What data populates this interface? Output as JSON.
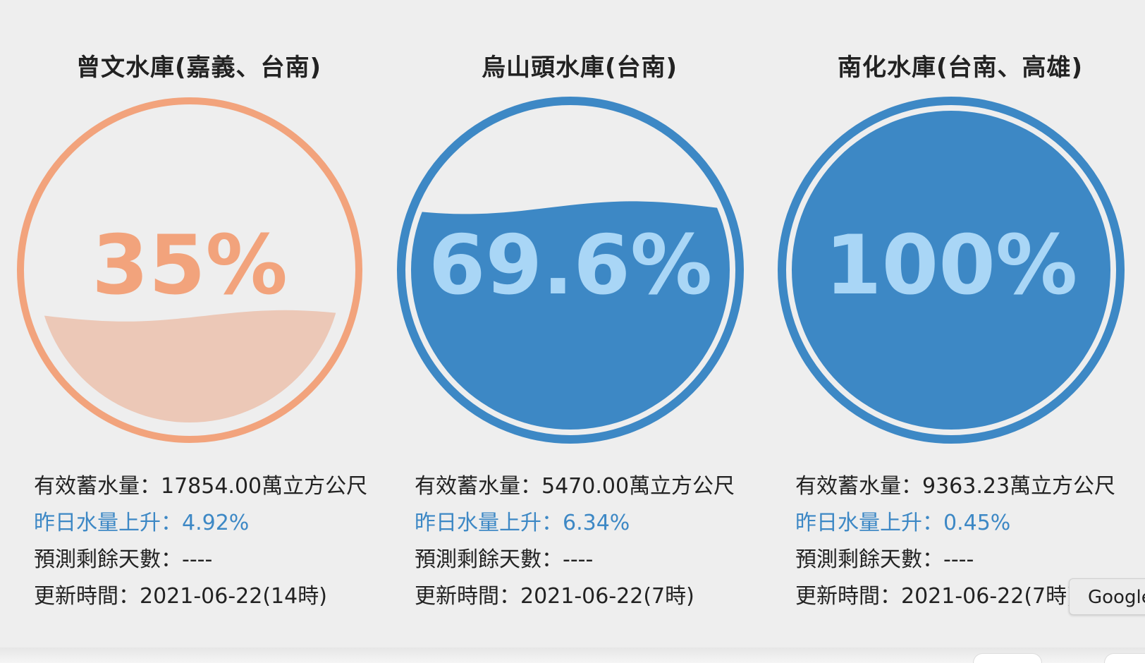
{
  "reservoirs": [
    {
      "name": "曾文水庫(嘉義、台南)",
      "percent_label": "35%",
      "fill_fraction": 0.35,
      "ring_color": "#f2a37c",
      "fill_color": "#ecc8b7",
      "text_color": "#f2a37c",
      "effective_storage": "有效蓄水量：17854.00萬立方公尺",
      "yesterday_change": "昨日水量上升：4.92%",
      "forecast_days": "預測剩餘天數：----",
      "updated": "更新時間：2021-06-22(14時)"
    },
    {
      "name": "烏山頭水庫(台南)",
      "percent_label": "69.6%",
      "fill_fraction": 0.696,
      "ring_color": "#3d88c5",
      "fill_color": "#3d88c5",
      "text_color": "#a9d6f6",
      "effective_storage": "有效蓄水量：5470.00萬立方公尺",
      "yesterday_change": "昨日水量上升：6.34%",
      "forecast_days": "預測剩餘天數：----",
      "updated": "更新時間：2021-06-22(7時)"
    },
    {
      "name": "南化水庫(台南、高雄)",
      "percent_label": "100%",
      "fill_fraction": 1.0,
      "ring_color": "#3d88c5",
      "fill_color": "#3d88c5",
      "text_color": "#a9d6f6",
      "effective_storage": "有效蓄水量：9363.23萬立方公尺",
      "yesterday_change": "昨日水量上升：0.45%",
      "forecast_days": "預測剩餘天數：----",
      "updated": "更新時間：2021-06-22(7時)"
    }
  ],
  "translate_chip": {
    "label": "Google"
  },
  "colors": {
    "background": "#eeeeee",
    "trend_text": "#3d88c5"
  }
}
